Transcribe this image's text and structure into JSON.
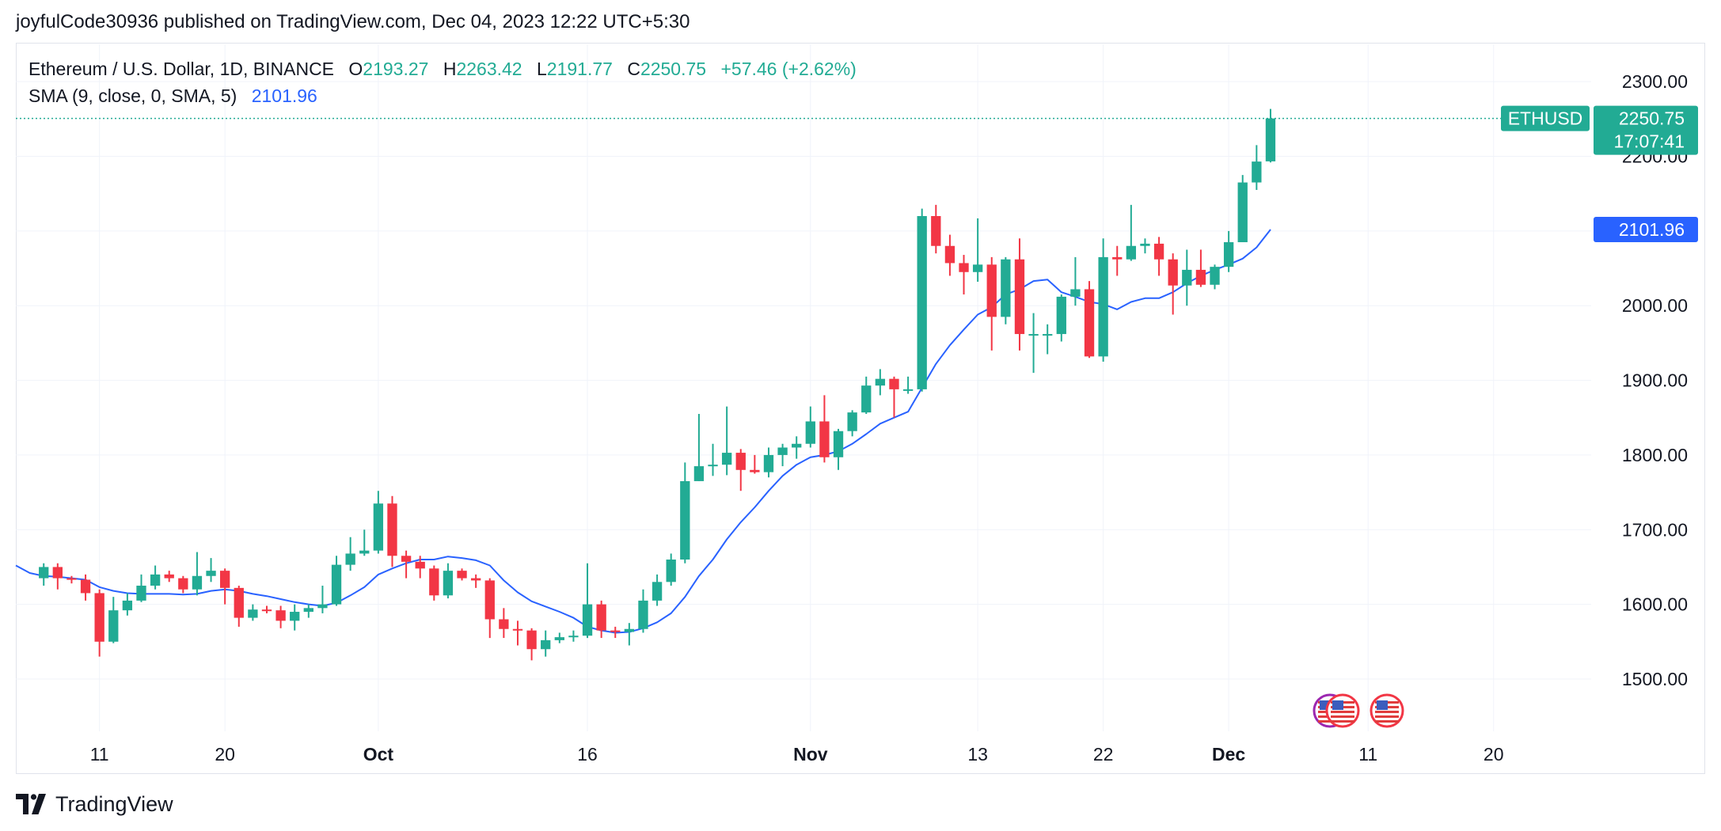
{
  "publish_line": "joyfulCode30936 published on TradingView.com, Dec 04, 2023 12:22 UTC+5:30",
  "legend": {
    "symbol": "Ethereum / U.S. Dollar, 1D, BINANCE",
    "o_label": "O",
    "o_value": "2193.27",
    "h_label": "H",
    "h_value": "2263.42",
    "l_label": "L",
    "l_value": "2191.77",
    "c_label": "C",
    "c_value": "2250.75",
    "change": "+57.46 (+2.62%)",
    "sma_label": "SMA (9, close, 0, SMA, 5)",
    "sma_value": "2101.96"
  },
  "price_tag": {
    "symbol": "ETHUSD",
    "price": "2250.75",
    "countdown": "17:07:41"
  },
  "sma_tag": "2101.96",
  "footer": {
    "brand": "TradingView"
  },
  "colors": {
    "up": "#22ab94",
    "down": "#f23645",
    "sma": "#2962ff",
    "grid": "#f0f3fa",
    "text": "#131722"
  },
  "chart_data": {
    "type": "candlestick",
    "ylim": [
      1430,
      2350
    ],
    "y_ticks": [
      "1500.00",
      "1600.00",
      "1700.00",
      "1800.00",
      "1900.00",
      "2000.00",
      "2100.00",
      "2200.00",
      "2300.00"
    ],
    "x_range": [
      "2023-09-05",
      "2023-12-27"
    ],
    "x_ticks": [
      {
        "date": "2023-09-11",
        "label": "11",
        "bold": false
      },
      {
        "date": "2023-09-20",
        "label": "20",
        "bold": false
      },
      {
        "date": "2023-10-01",
        "label": "Oct",
        "bold": true
      },
      {
        "date": "2023-10-16",
        "label": "16",
        "bold": false
      },
      {
        "date": "2023-11-01",
        "label": "Nov",
        "bold": true
      },
      {
        "date": "2023-11-13",
        "label": "13",
        "bold": false
      },
      {
        "date": "2023-11-22",
        "label": "22",
        "bold": false
      },
      {
        "date": "2023-12-01",
        "label": "Dec",
        "bold": true
      },
      {
        "date": "2023-12-11",
        "label": "11",
        "bold": false
      },
      {
        "date": "2023-12-20",
        "label": "20",
        "bold": false
      }
    ],
    "candles": [
      {
        "date": "2023-09-07",
        "o": 1635,
        "h": 1655,
        "l": 1625,
        "c": 1650
      },
      {
        "date": "2023-09-08",
        "o": 1650,
        "h": 1655,
        "l": 1620,
        "c": 1635
      },
      {
        "date": "2023-09-09",
        "o": 1635,
        "h": 1638,
        "l": 1628,
        "c": 1633
      },
      {
        "date": "2023-09-10",
        "o": 1633,
        "h": 1640,
        "l": 1605,
        "c": 1615
      },
      {
        "date": "2023-09-11",
        "o": 1615,
        "h": 1620,
        "l": 1530,
        "c": 1550
      },
      {
        "date": "2023-09-12",
        "o": 1550,
        "h": 1610,
        "l": 1548,
        "c": 1592
      },
      {
        "date": "2023-09-13",
        "o": 1592,
        "h": 1615,
        "l": 1585,
        "c": 1605
      },
      {
        "date": "2023-09-14",
        "o": 1605,
        "h": 1640,
        "l": 1603,
        "c": 1625
      },
      {
        "date": "2023-09-15",
        "o": 1625,
        "h": 1652,
        "l": 1620,
        "c": 1640
      },
      {
        "date": "2023-09-16",
        "o": 1640,
        "h": 1645,
        "l": 1630,
        "c": 1635
      },
      {
        "date": "2023-09-17",
        "o": 1635,
        "h": 1638,
        "l": 1615,
        "c": 1620
      },
      {
        "date": "2023-09-18",
        "o": 1620,
        "h": 1670,
        "l": 1612,
        "c": 1638
      },
      {
        "date": "2023-09-19",
        "o": 1638,
        "h": 1662,
        "l": 1630,
        "c": 1645
      },
      {
        "date": "2023-09-20",
        "o": 1645,
        "h": 1648,
        "l": 1600,
        "c": 1622
      },
      {
        "date": "2023-09-21",
        "o": 1622,
        "h": 1625,
        "l": 1570,
        "c": 1582
      },
      {
        "date": "2023-09-22",
        "o": 1582,
        "h": 1600,
        "l": 1578,
        "c": 1593
      },
      {
        "date": "2023-09-23",
        "o": 1593,
        "h": 1598,
        "l": 1588,
        "c": 1592
      },
      {
        "date": "2023-09-24",
        "o": 1592,
        "h": 1598,
        "l": 1568,
        "c": 1578
      },
      {
        "date": "2023-09-25",
        "o": 1578,
        "h": 1600,
        "l": 1565,
        "c": 1590
      },
      {
        "date": "2023-09-26",
        "o": 1590,
        "h": 1600,
        "l": 1582,
        "c": 1595
      },
      {
        "date": "2023-09-27",
        "o": 1595,
        "h": 1625,
        "l": 1588,
        "c": 1600
      },
      {
        "date": "2023-09-28",
        "o": 1600,
        "h": 1665,
        "l": 1598,
        "c": 1653
      },
      {
        "date": "2023-09-29",
        "o": 1653,
        "h": 1690,
        "l": 1645,
        "c": 1668
      },
      {
        "date": "2023-09-30",
        "o": 1668,
        "h": 1700,
        "l": 1665,
        "c": 1672
      },
      {
        "date": "2023-10-01",
        "o": 1672,
        "h": 1752,
        "l": 1668,
        "c": 1735
      },
      {
        "date": "2023-10-02",
        "o": 1735,
        "h": 1745,
        "l": 1650,
        "c": 1665
      },
      {
        "date": "2023-10-03",
        "o": 1665,
        "h": 1672,
        "l": 1635,
        "c": 1657
      },
      {
        "date": "2023-10-04",
        "o": 1657,
        "h": 1665,
        "l": 1635,
        "c": 1648
      },
      {
        "date": "2023-10-05",
        "o": 1648,
        "h": 1652,
        "l": 1605,
        "c": 1612
      },
      {
        "date": "2023-10-06",
        "o": 1612,
        "h": 1655,
        "l": 1608,
        "c": 1645
      },
      {
        "date": "2023-10-07",
        "o": 1645,
        "h": 1648,
        "l": 1632,
        "c": 1635
      },
      {
        "date": "2023-10-08",
        "o": 1635,
        "h": 1640,
        "l": 1622,
        "c": 1632
      },
      {
        "date": "2023-10-09",
        "o": 1632,
        "h": 1635,
        "l": 1555,
        "c": 1580
      },
      {
        "date": "2023-10-10",
        "o": 1580,
        "h": 1595,
        "l": 1555,
        "c": 1567
      },
      {
        "date": "2023-10-11",
        "o": 1567,
        "h": 1578,
        "l": 1545,
        "c": 1565
      },
      {
        "date": "2023-10-12",
        "o": 1565,
        "h": 1568,
        "l": 1525,
        "c": 1540
      },
      {
        "date": "2023-10-13",
        "o": 1540,
        "h": 1565,
        "l": 1530,
        "c": 1552
      },
      {
        "date": "2023-10-14",
        "o": 1552,
        "h": 1562,
        "l": 1548,
        "c": 1556
      },
      {
        "date": "2023-10-15",
        "o": 1556,
        "h": 1565,
        "l": 1550,
        "c": 1558
      },
      {
        "date": "2023-10-16",
        "o": 1558,
        "h": 1655,
        "l": 1555,
        "c": 1600
      },
      {
        "date": "2023-10-17",
        "o": 1600,
        "h": 1605,
        "l": 1555,
        "c": 1565
      },
      {
        "date": "2023-10-18",
        "o": 1565,
        "h": 1570,
        "l": 1555,
        "c": 1563
      },
      {
        "date": "2023-10-19",
        "o": 1563,
        "h": 1575,
        "l": 1545,
        "c": 1567
      },
      {
        "date": "2023-10-20",
        "o": 1567,
        "h": 1620,
        "l": 1562,
        "c": 1605
      },
      {
        "date": "2023-10-21",
        "o": 1605,
        "h": 1640,
        "l": 1598,
        "c": 1630
      },
      {
        "date": "2023-10-22",
        "o": 1630,
        "h": 1668,
        "l": 1625,
        "c": 1660
      },
      {
        "date": "2023-10-23",
        "o": 1660,
        "h": 1790,
        "l": 1655,
        "c": 1765
      },
      {
        "date": "2023-10-24",
        "o": 1765,
        "h": 1855,
        "l": 1765,
        "c": 1785
      },
      {
        "date": "2023-10-25",
        "o": 1785,
        "h": 1815,
        "l": 1772,
        "c": 1787
      },
      {
        "date": "2023-10-26",
        "o": 1787,
        "h": 1865,
        "l": 1773,
        "c": 1803
      },
      {
        "date": "2023-10-27",
        "o": 1803,
        "h": 1808,
        "l": 1752,
        "c": 1780
      },
      {
        "date": "2023-10-28",
        "o": 1780,
        "h": 1800,
        "l": 1775,
        "c": 1777
      },
      {
        "date": "2023-10-29",
        "o": 1777,
        "h": 1810,
        "l": 1770,
        "c": 1800
      },
      {
        "date": "2023-10-30",
        "o": 1800,
        "h": 1815,
        "l": 1785,
        "c": 1810
      },
      {
        "date": "2023-10-31",
        "o": 1810,
        "h": 1825,
        "l": 1795,
        "c": 1815
      },
      {
        "date": "2023-11-01",
        "o": 1815,
        "h": 1865,
        "l": 1810,
        "c": 1845
      },
      {
        "date": "2023-11-02",
        "o": 1845,
        "h": 1880,
        "l": 1790,
        "c": 1797
      },
      {
        "date": "2023-11-03",
        "o": 1797,
        "h": 1835,
        "l": 1780,
        "c": 1832
      },
      {
        "date": "2023-11-04",
        "o": 1832,
        "h": 1860,
        "l": 1825,
        "c": 1857
      },
      {
        "date": "2023-11-05",
        "o": 1857,
        "h": 1905,
        "l": 1855,
        "c": 1893
      },
      {
        "date": "2023-11-06",
        "o": 1893,
        "h": 1915,
        "l": 1880,
        "c": 1902
      },
      {
        "date": "2023-11-07",
        "o": 1902,
        "h": 1905,
        "l": 1850,
        "c": 1888
      },
      {
        "date": "2023-11-08",
        "o": 1888,
        "h": 1905,
        "l": 1882,
        "c": 1888
      },
      {
        "date": "2023-11-09",
        "o": 1888,
        "h": 2130,
        "l": 1885,
        "c": 2120
      },
      {
        "date": "2023-11-10",
        "o": 2120,
        "h": 2135,
        "l": 2070,
        "c": 2080
      },
      {
        "date": "2023-11-11",
        "o": 2080,
        "h": 2095,
        "l": 2040,
        "c": 2057
      },
      {
        "date": "2023-11-12",
        "o": 2057,
        "h": 2068,
        "l": 2015,
        "c": 2045
      },
      {
        "date": "2023-11-13",
        "o": 2045,
        "h": 2117,
        "l": 2032,
        "c": 2055
      },
      {
        "date": "2023-11-14",
        "o": 2055,
        "h": 2065,
        "l": 1940,
        "c": 1985
      },
      {
        "date": "2023-11-15",
        "o": 1985,
        "h": 2065,
        "l": 1975,
        "c": 2062
      },
      {
        "date": "2023-11-16",
        "o": 2062,
        "h": 2090,
        "l": 1940,
        "c": 1962
      },
      {
        "date": "2023-11-17",
        "o": 1962,
        "h": 1990,
        "l": 1910,
        "c": 1962
      },
      {
        "date": "2023-11-18",
        "o": 1962,
        "h": 1975,
        "l": 1935,
        "c": 1962
      },
      {
        "date": "2023-11-19",
        "o": 1962,
        "h": 2015,
        "l": 1952,
        "c": 2012
      },
      {
        "date": "2023-11-20",
        "o": 2012,
        "h": 2065,
        "l": 2000,
        "c": 2022
      },
      {
        "date": "2023-11-21",
        "o": 2022,
        "h": 2033,
        "l": 1930,
        "c": 1932
      },
      {
        "date": "2023-11-22",
        "o": 1932,
        "h": 2090,
        "l": 1925,
        "c": 2065
      },
      {
        "date": "2023-11-23",
        "o": 2065,
        "h": 2080,
        "l": 2040,
        "c": 2062
      },
      {
        "date": "2023-11-24",
        "o": 2062,
        "h": 2135,
        "l": 2060,
        "c": 2080
      },
      {
        "date": "2023-11-25",
        "o": 2080,
        "h": 2090,
        "l": 2070,
        "c": 2083
      },
      {
        "date": "2023-11-26",
        "o": 2083,
        "h": 2092,
        "l": 2040,
        "c": 2062
      },
      {
        "date": "2023-11-27",
        "o": 2062,
        "h": 2070,
        "l": 1988,
        "c": 2027
      },
      {
        "date": "2023-11-28",
        "o": 2027,
        "h": 2075,
        "l": 2000,
        "c": 2048
      },
      {
        "date": "2023-11-29",
        "o": 2048,
        "h": 2075,
        "l": 2025,
        "c": 2028
      },
      {
        "date": "2023-11-30",
        "o": 2028,
        "h": 2055,
        "l": 2022,
        "c": 2052
      },
      {
        "date": "2023-12-01",
        "o": 2052,
        "h": 2100,
        "l": 2045,
        "c": 2085
      },
      {
        "date": "2023-12-02",
        "o": 2085,
        "h": 2175,
        "l": 2085,
        "c": 2165
      },
      {
        "date": "2023-12-03",
        "o": 2165,
        "h": 2215,
        "l": 2155,
        "c": 2193
      },
      {
        "date": "2023-12-04",
        "o": 2193.27,
        "h": 2263.42,
        "l": 2191.77,
        "c": 2250.75
      }
    ],
    "sma": [
      {
        "date": "2023-09-05",
        "v": 1652
      },
      {
        "date": "2023-09-06",
        "v": 1642
      },
      {
        "date": "2023-09-07",
        "v": 1638
      },
      {
        "date": "2023-09-08",
        "v": 1637
      },
      {
        "date": "2023-09-09",
        "v": 1635
      },
      {
        "date": "2023-09-10",
        "v": 1633
      },
      {
        "date": "2023-09-11",
        "v": 1623
      },
      {
        "date": "2023-09-12",
        "v": 1618
      },
      {
        "date": "2023-09-13",
        "v": 1615
      },
      {
        "date": "2023-09-14",
        "v": 1614
      },
      {
        "date": "2023-09-15",
        "v": 1614
      },
      {
        "date": "2023-09-16",
        "v": 1614
      },
      {
        "date": "2023-09-17",
        "v": 1613
      },
      {
        "date": "2023-09-18",
        "v": 1614
      },
      {
        "date": "2023-09-19",
        "v": 1618
      },
      {
        "date": "2023-09-20",
        "v": 1620
      },
      {
        "date": "2023-09-21",
        "v": 1618
      },
      {
        "date": "2023-09-22",
        "v": 1614
      },
      {
        "date": "2023-09-23",
        "v": 1611
      },
      {
        "date": "2023-09-24",
        "v": 1607
      },
      {
        "date": "2023-09-25",
        "v": 1603
      },
      {
        "date": "2023-09-26",
        "v": 1600
      },
      {
        "date": "2023-09-27",
        "v": 1598
      },
      {
        "date": "2023-09-28",
        "v": 1602
      },
      {
        "date": "2023-09-29",
        "v": 1612
      },
      {
        "date": "2023-09-30",
        "v": 1623
      },
      {
        "date": "2023-10-01",
        "v": 1640
      },
      {
        "date": "2023-10-02",
        "v": 1648
      },
      {
        "date": "2023-10-03",
        "v": 1655
      },
      {
        "date": "2023-10-04",
        "v": 1660
      },
      {
        "date": "2023-10-05",
        "v": 1660
      },
      {
        "date": "2023-10-06",
        "v": 1664
      },
      {
        "date": "2023-10-07",
        "v": 1662
      },
      {
        "date": "2023-10-08",
        "v": 1659
      },
      {
        "date": "2023-10-09",
        "v": 1652
      },
      {
        "date": "2023-10-10",
        "v": 1632
      },
      {
        "date": "2023-10-11",
        "v": 1616
      },
      {
        "date": "2023-10-12",
        "v": 1604
      },
      {
        "date": "2023-10-13",
        "v": 1597
      },
      {
        "date": "2023-10-14",
        "v": 1590
      },
      {
        "date": "2023-10-15",
        "v": 1582
      },
      {
        "date": "2023-10-16",
        "v": 1570
      },
      {
        "date": "2023-10-17",
        "v": 1565
      },
      {
        "date": "2023-10-18",
        "v": 1562
      },
      {
        "date": "2023-10-19",
        "v": 1563
      },
      {
        "date": "2023-10-20",
        "v": 1568
      },
      {
        "date": "2023-10-21",
        "v": 1576
      },
      {
        "date": "2023-10-22",
        "v": 1588
      },
      {
        "date": "2023-10-23",
        "v": 1610
      },
      {
        "date": "2023-10-24",
        "v": 1638
      },
      {
        "date": "2023-10-25",
        "v": 1660
      },
      {
        "date": "2023-10-26",
        "v": 1687
      },
      {
        "date": "2023-10-27",
        "v": 1710
      },
      {
        "date": "2023-10-28",
        "v": 1730
      },
      {
        "date": "2023-10-29",
        "v": 1752
      },
      {
        "date": "2023-10-30",
        "v": 1772
      },
      {
        "date": "2023-10-31",
        "v": 1787
      },
      {
        "date": "2023-11-01",
        "v": 1797
      },
      {
        "date": "2023-11-02",
        "v": 1800
      },
      {
        "date": "2023-11-03",
        "v": 1805
      },
      {
        "date": "2023-11-04",
        "v": 1815
      },
      {
        "date": "2023-11-05",
        "v": 1828
      },
      {
        "date": "2023-11-06",
        "v": 1842
      },
      {
        "date": "2023-11-07",
        "v": 1850
      },
      {
        "date": "2023-11-08",
        "v": 1858
      },
      {
        "date": "2023-11-09",
        "v": 1890
      },
      {
        "date": "2023-11-10",
        "v": 1922
      },
      {
        "date": "2023-11-11",
        "v": 1947
      },
      {
        "date": "2023-11-12",
        "v": 1968
      },
      {
        "date": "2023-11-13",
        "v": 1988
      },
      {
        "date": "2023-11-14",
        "v": 1998
      },
      {
        "date": "2023-11-15",
        "v": 2015
      },
      {
        "date": "2023-11-16",
        "v": 2022
      },
      {
        "date": "2023-11-17",
        "v": 2033
      },
      {
        "date": "2023-11-18",
        "v": 2035
      },
      {
        "date": "2023-11-19",
        "v": 2018
      },
      {
        "date": "2023-11-20",
        "v": 2012
      },
      {
        "date": "2023-11-21",
        "v": 2005
      },
      {
        "date": "2023-11-22",
        "v": 2002
      },
      {
        "date": "2023-11-23",
        "v": 1995
      },
      {
        "date": "2023-11-24",
        "v": 2005
      },
      {
        "date": "2023-11-25",
        "v": 2010
      },
      {
        "date": "2023-11-26",
        "v": 2010
      },
      {
        "date": "2023-11-27",
        "v": 2018
      },
      {
        "date": "2023-11-28",
        "v": 2030
      },
      {
        "date": "2023-11-29",
        "v": 2040
      },
      {
        "date": "2023-11-30",
        "v": 2048
      },
      {
        "date": "2023-12-01",
        "v": 2055
      },
      {
        "date": "2023-12-02",
        "v": 2063
      },
      {
        "date": "2023-12-03",
        "v": 2078
      },
      {
        "date": "2023-12-04",
        "v": 2101.96
      }
    ]
  }
}
